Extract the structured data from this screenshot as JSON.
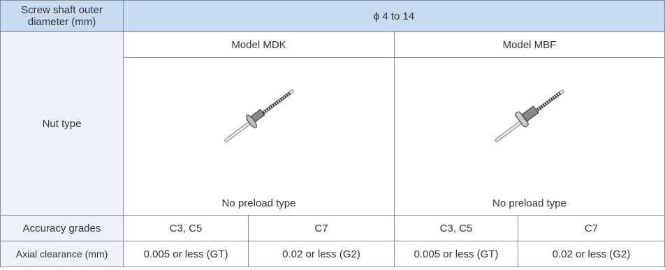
{
  "table": {
    "header": [
      "Screw shaft outer diameter (mm)",
      "ϕ 4 to 14"
    ],
    "models": [
      "Model MDK",
      "Model MBF"
    ],
    "nut_type_label": "Nut type",
    "preload": [
      "No preload type",
      "No preload type"
    ],
    "rows": [
      [
        "Accuracy grades",
        "C3, C5",
        "C7",
        "C3, C5",
        "C7"
      ],
      [
        "Axial clearance (mm)",
        "0.005 or less (GT)",
        "0.02 or less (G2)",
        "0.005 or less (GT)",
        "0.02 or less (G2)"
      ]
    ]
  }
}
